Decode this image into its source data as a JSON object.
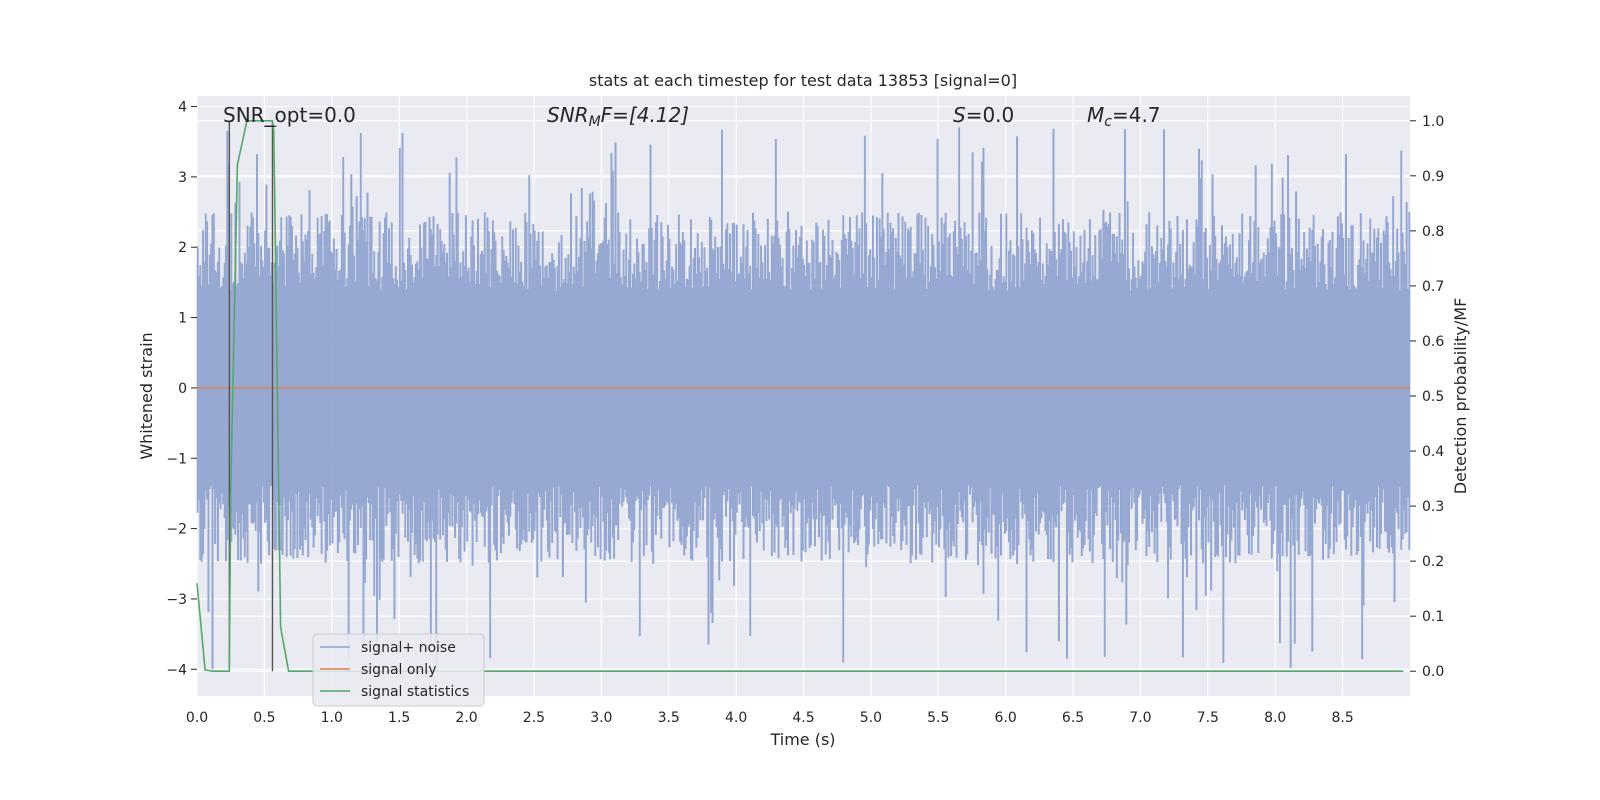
{
  "chart_data": {
    "type": "line",
    "title": "stats at each timestep for test data 13853 [signal=0]",
    "xlabel": "Time (s)",
    "ylabel": "Whitened strain",
    "y2label": "Detection probability/MF",
    "xlim": [
      0.0,
      9.0
    ],
    "ylim": [
      -4.38,
      4.15
    ],
    "y2lim": [
      -0.045,
      1.045
    ],
    "x_ticks": [
      "0.0",
      "0.5",
      "1.0",
      "1.5",
      "2.0",
      "2.5",
      "3.0",
      "3.5",
      "4.0",
      "4.5",
      "5.0",
      "5.5",
      "6.0",
      "6.5",
      "7.0",
      "7.5",
      "8.0",
      "8.5"
    ],
    "y_ticks": [
      "4",
      "3",
      "2",
      "1",
      "0",
      "−1",
      "−2",
      "−3",
      "−4"
    ],
    "y2_ticks": [
      "1.0",
      "0.9",
      "0.8",
      "0.7",
      "0.6",
      "0.5",
      "0.4",
      "0.3",
      "0.2",
      "0.1",
      "0.0"
    ],
    "grid": true,
    "legend_position": "lower-left",
    "annotations": {
      "snr_opt": "SNR_opt=0.0",
      "snr_mf_main": "SNR",
      "snr_mf_sub": "M",
      "snr_mf_rest": "F=[4.12]",
      "s_main": "S",
      "s_rest": "=0.0",
      "mc_main": "M",
      "mc_sub": "c",
      "mc_rest": "=4.7"
    },
    "vertical_markers": [
      0.24,
      0.56
    ],
    "series": [
      {
        "name": "signal+ noise",
        "color": "#8fa3cf",
        "kind": "noise",
        "sample_count": 900,
        "typical_range": [
          -2.5,
          2.5
        ],
        "extremes": [
          -4.0,
          3.7
        ]
      },
      {
        "name": "signal only",
        "color": "#dd8452",
        "x": [
          0.0,
          9.0
        ],
        "y": [
          0.0,
          0.0
        ]
      },
      {
        "name": "signal statistics",
        "color": "#55a868",
        "axis": "right",
        "x": [
          0.0,
          0.06,
          0.12,
          0.24,
          0.25,
          0.3,
          0.37,
          0.42,
          0.56,
          0.57,
          0.62,
          0.68,
          8.95
        ],
        "y": [
          0.16,
          0.002,
          0.0,
          0.0,
          0.32,
          0.92,
          1.0,
          1.0,
          1.0,
          0.98,
          0.08,
          0.0,
          0.0
        ]
      }
    ]
  }
}
